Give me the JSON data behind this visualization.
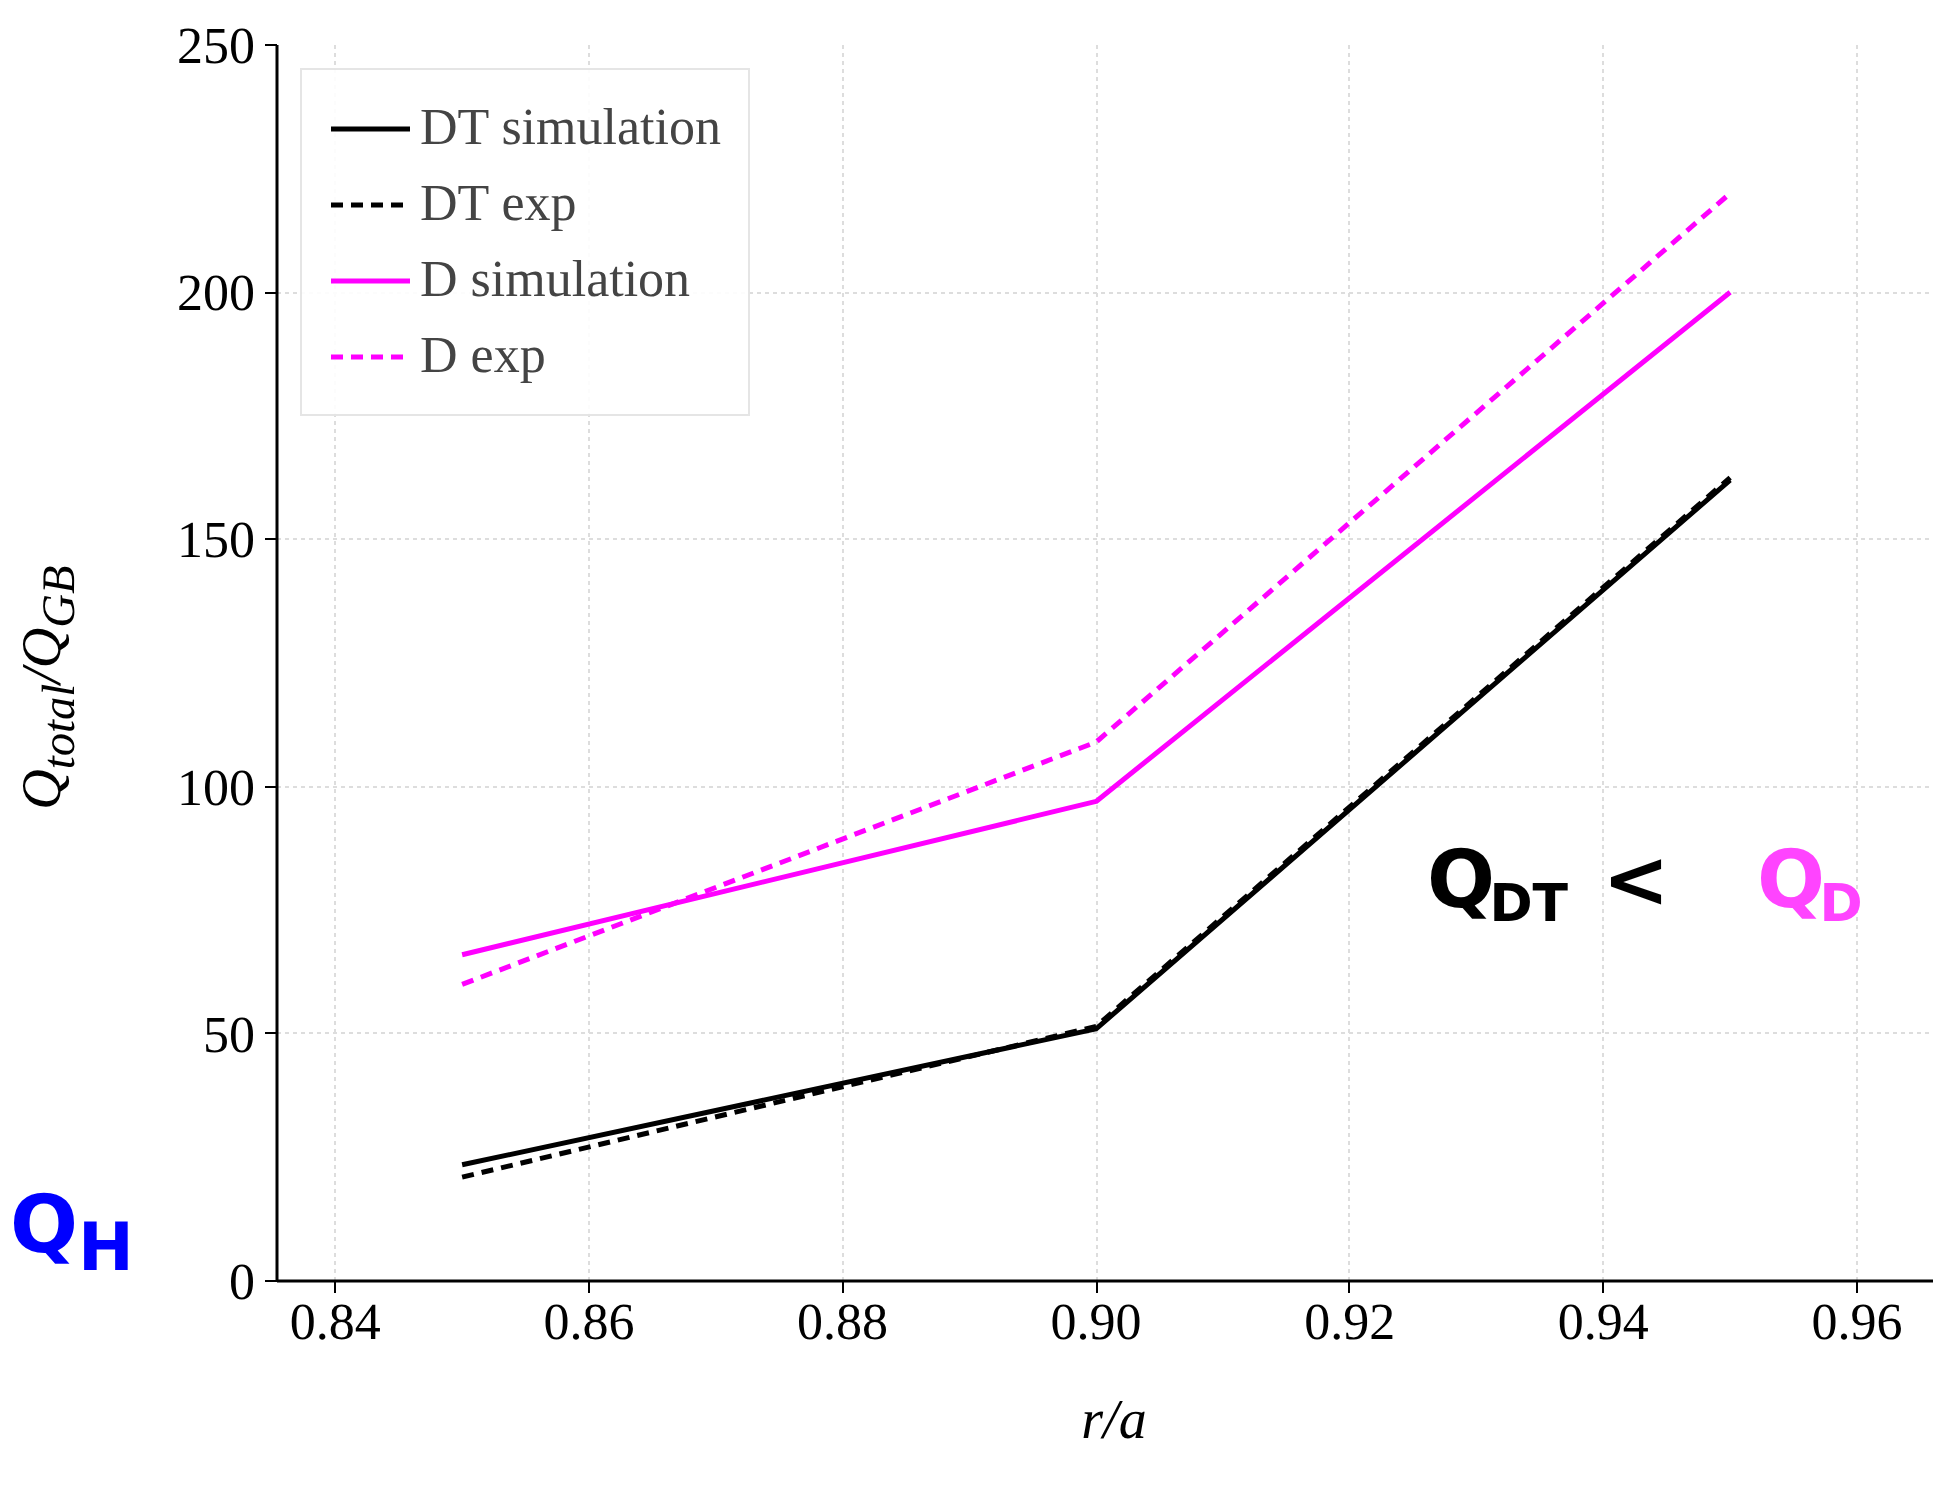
{
  "chart_data": {
    "type": "line",
    "xlabel": "r/a",
    "ylabel": "Q$_{total}$/Q$_{GB}$",
    "x": [
      0.85,
      0.9,
      0.95
    ],
    "series": [
      {
        "name": "DT simulation",
        "color": "#000000",
        "values": [
          23.5,
          51,
          162
        ],
        "line_style": "solid"
      },
      {
        "name": "DT exp",
        "color": "#000000",
        "values": [
          21,
          51.5,
          162.5
        ],
        "line_style": "dashed"
      },
      {
        "name": "D simulation",
        "color": "#ff00ff",
        "values": [
          66,
          97,
          200
        ],
        "line_style": "solid"
      },
      {
        "name": "D exp",
        "color": "#ff00ff",
        "values": [
          60,
          109,
          220
        ],
        "line_style": "dashed"
      }
    ],
    "xlim": [
      0.8354,
      0.966
    ],
    "ylim": [
      0,
      250
    ],
    "xticks": [
      0.84,
      0.86,
      0.88,
      {
        "value": 0.9,
        "label": "0.90"
      },
      0.92,
      0.94,
      0.96
    ],
    "yticks": [
      0,
      50,
      100,
      150,
      200,
      250
    ],
    "grid": true,
    "legend": "top left",
    "marker": "none",
    "annotations": [
      "Q$_{DT}$ <",
      "Q$_{D}$",
      "Q$_{H}$"
    ]
  }
}
